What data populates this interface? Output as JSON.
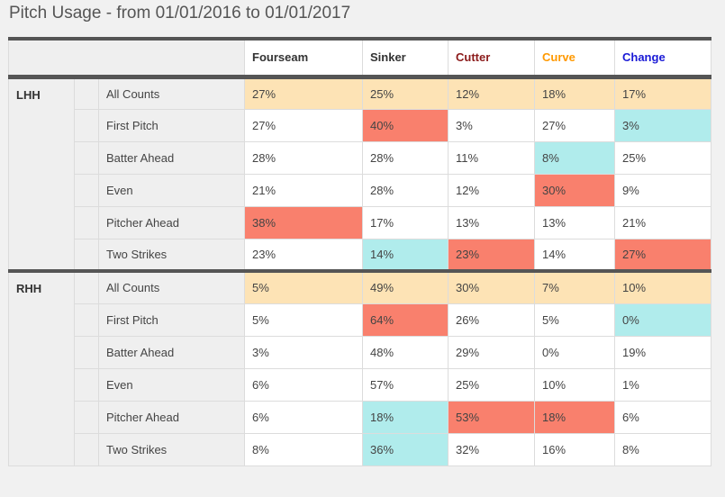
{
  "title": "Pitch Usage - from 01/01/2016 to 01/01/2017",
  "columns": [
    {
      "label": "Fourseam",
      "color": "#333333"
    },
    {
      "label": "Sinker",
      "color": "#333333"
    },
    {
      "label": "Cutter",
      "color": "#8b1a1a"
    },
    {
      "label": "Curve",
      "color": "#ff9900"
    },
    {
      "label": "Change",
      "color": "#1a1ad6"
    }
  ],
  "highlight_colors": {
    "base": "#fde3b5",
    "high": "#f9806d",
    "low": "#b0ecec"
  },
  "groups": [
    {
      "label": "LHH",
      "rows": [
        {
          "label": "All Counts",
          "values": [
            "27%",
            "25%",
            "12%",
            "18%",
            "17%"
          ],
          "hl": [
            "base",
            "base",
            "base",
            "base",
            "base"
          ]
        },
        {
          "label": "First Pitch",
          "values": [
            "27%",
            "40%",
            "3%",
            "27%",
            "3%"
          ],
          "hl": [
            "",
            "high",
            "",
            "",
            "low"
          ]
        },
        {
          "label": "Batter Ahead",
          "values": [
            "28%",
            "28%",
            "11%",
            "8%",
            "25%"
          ],
          "hl": [
            "",
            "",
            "",
            "low",
            ""
          ]
        },
        {
          "label": "Even",
          "values": [
            "21%",
            "28%",
            "12%",
            "30%",
            "9%"
          ],
          "hl": [
            "",
            "",
            "",
            "high",
            ""
          ]
        },
        {
          "label": "Pitcher Ahead",
          "values": [
            "38%",
            "17%",
            "13%",
            "13%",
            "21%"
          ],
          "hl": [
            "high",
            "",
            "",
            "",
            ""
          ]
        },
        {
          "label": "Two Strikes",
          "values": [
            "23%",
            "14%",
            "23%",
            "14%",
            "27%"
          ],
          "hl": [
            "",
            "low",
            "high",
            "",
            "high"
          ]
        }
      ]
    },
    {
      "label": "RHH",
      "rows": [
        {
          "label": "All Counts",
          "values": [
            "5%",
            "49%",
            "30%",
            "7%",
            "10%"
          ],
          "hl": [
            "base",
            "base",
            "base",
            "base",
            "base"
          ]
        },
        {
          "label": "First Pitch",
          "values": [
            "5%",
            "64%",
            "26%",
            "5%",
            "0%"
          ],
          "hl": [
            "",
            "high",
            "",
            "",
            "low"
          ]
        },
        {
          "label": "Batter Ahead",
          "values": [
            "3%",
            "48%",
            "29%",
            "0%",
            "19%"
          ],
          "hl": [
            "",
            "",
            "",
            "",
            ""
          ]
        },
        {
          "label": "Even",
          "values": [
            "6%",
            "57%",
            "25%",
            "10%",
            "1%"
          ],
          "hl": [
            "",
            "",
            "",
            "",
            ""
          ]
        },
        {
          "label": "Pitcher Ahead",
          "values": [
            "6%",
            "18%",
            "53%",
            "18%",
            "6%"
          ],
          "hl": [
            "",
            "low",
            "high",
            "high",
            ""
          ]
        },
        {
          "label": "Two Strikes",
          "values": [
            "8%",
            "36%",
            "32%",
            "16%",
            "8%"
          ],
          "hl": [
            "",
            "low",
            "",
            "",
            ""
          ]
        }
      ]
    }
  ]
}
